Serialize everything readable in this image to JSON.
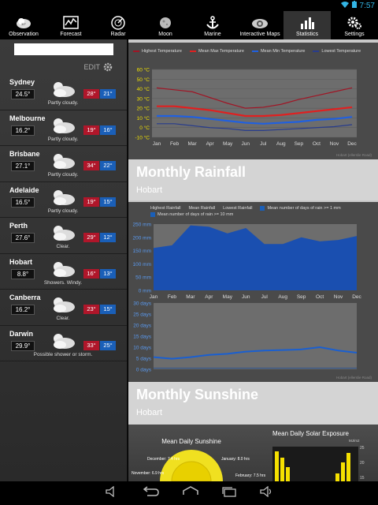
{
  "status_bar": {
    "time": "7:57"
  },
  "nav": {
    "items": [
      {
        "label": "Observation",
        "icon": "observation-icon"
      },
      {
        "label": "Forecast",
        "icon": "forecast-icon"
      },
      {
        "label": "Radar",
        "icon": "radar-icon"
      },
      {
        "label": "Moon",
        "icon": "moon-icon"
      },
      {
        "label": "Marine",
        "icon": "anchor-icon"
      },
      {
        "label": "Interactive Maps",
        "icon": "map-icon"
      },
      {
        "label": "Statistics",
        "icon": "statistics-icon"
      },
      {
        "label": "Settings",
        "icon": "gear-icon"
      }
    ],
    "active": "Statistics"
  },
  "sidebar": {
    "search_value": "",
    "edit_label": "EDIT",
    "cities": [
      {
        "name": "Sydney",
        "temp": "24.5°",
        "cond": "Partly cloudy.",
        "max": "28°",
        "min": "21°"
      },
      {
        "name": "Melbourne",
        "temp": "16.2°",
        "cond": "Partly cloudy.",
        "max": "19°",
        "min": "16°"
      },
      {
        "name": "Brisbane",
        "temp": "27.1°",
        "cond": "Partly cloudy.",
        "max": "34°",
        "min": "22°"
      },
      {
        "name": "Adelaide",
        "temp": "16.5°",
        "cond": "Partly cloudy.",
        "max": "19°",
        "min": "15°"
      },
      {
        "name": "Perth",
        "temp": "27.6°",
        "cond": "Clear.",
        "max": "29°",
        "min": "12°"
      },
      {
        "name": "Hobart",
        "temp": "8.8°",
        "cond": "Showers. Windy.",
        "max": "16°",
        "min": "13°"
      },
      {
        "name": "Canberra",
        "temp": "16.2°",
        "cond": "Clear.",
        "max": "23°",
        "min": "15°"
      },
      {
        "name": "Darwin",
        "temp": "29.9°",
        "cond": "Possible shower or storm.",
        "max": "33°",
        "min": "25°"
      }
    ]
  },
  "temperature": {
    "legend": [
      "Highest Temperature",
      "Mean Max Temperature",
      "Mean Min Temperature",
      "Lowest Temperature"
    ],
    "colors": [
      "#a01525",
      "#e02020",
      "#2060e0",
      "#283c8c"
    ],
    "credit": "Hobart (ellerslie Road)"
  },
  "rainfall": {
    "title": "Monthly Rainfall",
    "location": "Hobart",
    "legend": [
      "Highest Rainfall",
      "Mean Rainfall",
      "Lowest Rainfall",
      "Mean number of days of rain >= 1 mm",
      "Mean number of days of rain >= 10 mm"
    ],
    "credit": "Hobart (ellerslie Road)"
  },
  "sunshine": {
    "title": "Monthly Sunshine",
    "location": "Hobart",
    "daily_title": "Mean Daily Sunshine",
    "labels": [
      "December: 7.4 hrs",
      "January: 8.0 hrs",
      "November: 6.9 hrs",
      "February: 7.5 hrs"
    ],
    "solar_title": "Mean Daily Solar Exposure",
    "solar_unit": "MJ/m2",
    "solar_ticks": [
      "25",
      "20",
      "15"
    ]
  },
  "chart_data": [
    {
      "type": "line",
      "title": "",
      "categories": [
        "Jan",
        "Feb",
        "Mar",
        "Apr",
        "May",
        "Jun",
        "Jul",
        "Aug",
        "Sep",
        "Oct",
        "Nov",
        "Dec"
      ],
      "ylabel": "",
      "ylim": [
        -10,
        60
      ],
      "yticks": [
        "60 °C",
        "50 °C",
        "40 °C",
        "30 °C",
        "20 °C",
        "10 °C",
        "0 °C",
        "-10 °C"
      ],
      "series": [
        {
          "name": "Highest Temperature",
          "values": [
            41,
            39,
            37,
            31,
            25,
            20,
            21,
            24,
            29,
            33,
            37,
            41
          ]
        },
        {
          "name": "Mean Max Temperature",
          "values": [
            22,
            22,
            20,
            18,
            15,
            12,
            12,
            13,
            15,
            17,
            19,
            21
          ]
        },
        {
          "name": "Mean Min Temperature",
          "values": [
            12,
            12,
            11,
            9,
            7,
            5,
            4,
            5,
            6,
            8,
            9,
            11
          ]
        },
        {
          "name": "Lowest Temperature",
          "values": [
            4,
            4,
            2,
            0,
            -1,
            -3,
            -3,
            -2,
            -1,
            0,
            1,
            3
          ]
        }
      ]
    },
    {
      "type": "area",
      "title": "",
      "categories": [
        "Jan",
        "Feb",
        "Mar",
        "Apr",
        "May",
        "Jun",
        "Jul",
        "Aug",
        "Sep",
        "Oct",
        "Nov",
        "Dec"
      ],
      "ylim": [
        0,
        250
      ],
      "yticks": [
        "250 mm",
        "200 mm",
        "150 mm",
        "100 mm",
        "50 mm",
        "0 mm"
      ],
      "series": [
        {
          "name": "Highest Rainfall",
          "values": [
            160,
            170,
            245,
            240,
            215,
            235,
            175,
            175,
            200,
            185,
            190,
            205
          ]
        }
      ]
    },
    {
      "type": "line",
      "title": "",
      "categories": [
        "Jan",
        "Feb",
        "Mar",
        "Apr",
        "May",
        "Jun",
        "Jul",
        "Aug",
        "Sep",
        "Oct",
        "Nov",
        "Dec"
      ],
      "ylim": [
        0,
        30
      ],
      "yticks": [
        "30 days",
        "25 days",
        "20 days",
        "15 days",
        "10 days",
        "5 days",
        "0 days"
      ],
      "series": [
        {
          "name": "Mean number of days of rain >= 1 mm",
          "values": [
            5.5,
            4.8,
            5.5,
            6.5,
            7,
            8,
            8.5,
            8.7,
            9,
            10,
            8.5,
            7.5
          ]
        }
      ]
    }
  ]
}
